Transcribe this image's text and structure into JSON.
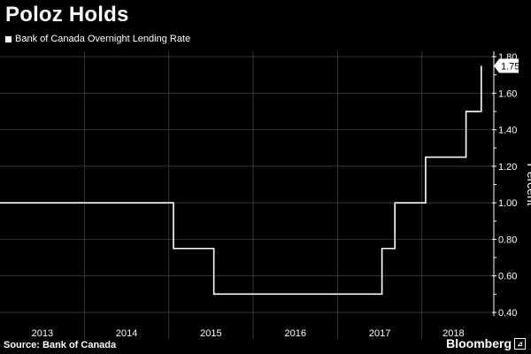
{
  "title": "Poloz Holds",
  "legend_label": "Bank of Canada Overnight Lending Rate",
  "source": "Source: Bank of Canada",
  "brand": "Bloomberg",
  "colors": {
    "background": "#000000",
    "line": "#ffffff",
    "grid": "#4a4a4a"
  },
  "chart_data": {
    "type": "line",
    "step": true,
    "x_start": "2012-12-31",
    "x_end": "2018-10-01",
    "ylabel": "Percent",
    "ylim": [
      0.4,
      1.8
    ],
    "yticks": [
      0.4,
      0.6,
      0.8,
      1.0,
      1.2,
      1.4,
      1.6,
      1.8
    ],
    "ytick_labels": [
      "0.40",
      "0.60",
      "0.80",
      "1.00",
      "1.20",
      "1.40",
      "1.60",
      "1.80"
    ],
    "xtick_labels": [
      "2013",
      "2014",
      "2015",
      "2016",
      "2017",
      "2018"
    ],
    "grid": true,
    "series": [
      {
        "name": "Bank of Canada Overnight Lending Rate",
        "x": [
          "2012-12-31",
          "2015-01-21",
          "2015-07-15",
          "2017-07-12",
          "2017-09-06",
          "2018-01-17",
          "2018-07-11",
          "2018-09-15"
        ],
        "values": [
          1.0,
          0.75,
          0.5,
          0.75,
          1.0,
          1.25,
          1.5,
          1.75
        ]
      }
    ],
    "last_value_label": "1.75"
  }
}
